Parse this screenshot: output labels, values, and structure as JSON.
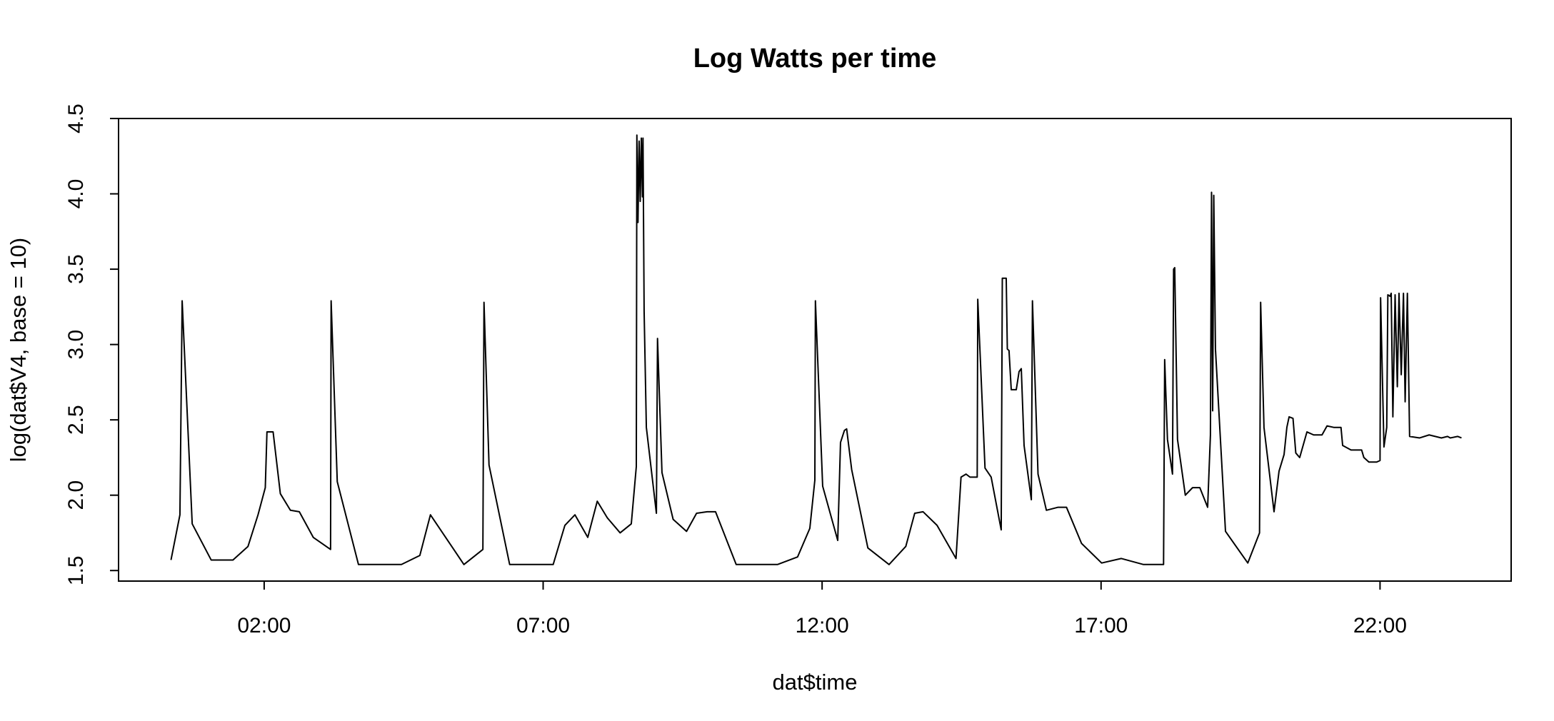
{
  "chart_data": {
    "type": "line",
    "title": "Log Watts per time",
    "x_label": "dat$time",
    "y_label": "log(dat$V4, base = 10)",
    "color": "#000000",
    "xlim": [
      -0.61,
      24.35
    ],
    "ylim": [
      1.43,
      4.5
    ],
    "xticks": [
      {
        "value": 2,
        "label": "02:00"
      },
      {
        "value": 7,
        "label": "07:00"
      },
      {
        "value": 12,
        "label": "12:00"
      },
      {
        "value": 17,
        "label": "17:00"
      },
      {
        "value": 22,
        "label": "22:00"
      }
    ],
    "yticks": [
      1.5,
      {
        "value": 2,
        "label": "2.0"
      },
      2.5,
      {
        "value": 3,
        "label": "3.0"
      },
      3.5,
      {
        "value": 4,
        "label": "4.0"
      },
      4.5
    ],
    "grid": false,
    "x": [
      0.33,
      0.49,
      0.53,
      0.71,
      1.05,
      1.44,
      1.71,
      1.89,
      2.02,
      2.05,
      2.16,
      2.29,
      2.47,
      2.63,
      2.88,
      3.19,
      3.2,
      3.31,
      3.69,
      4.46,
      4.79,
      4.98,
      5.58,
      5.92,
      5.94,
      6.03,
      6.4,
      7.18,
      7.39,
      7.57,
      7.8,
      7.97,
      8.15,
      8.38,
      8.58,
      8.67,
      8.68,
      8.7,
      8.72,
      8.74,
      8.76,
      8.78,
      8.79,
      8.81,
      8.85,
      9.03,
      9.05,
      9.13,
      9.33,
      9.57,
      9.75,
      9.94,
      10.09,
      10.46,
      11.2,
      11.56,
      11.78,
      11.87,
      11.88,
      12.01,
      12.28,
      12.33,
      12.4,
      12.44,
      12.53,
      12.82,
      13.2,
      13.5,
      13.66,
      13.81,
      14.06,
      14.4,
      14.49,
      14.58,
      14.65,
      14.78,
      14.79,
      14.92,
      15.03,
      15.21,
      15.23,
      15.3,
      15.32,
      15.35,
      15.39,
      15.48,
      15.53,
      15.57,
      15.62,
      15.75,
      15.77,
      15.87,
      16.02,
      16.23,
      16.38,
      16.65,
      17.01,
      17.36,
      17.76,
      18.12,
      18.14,
      18.19,
      18.28,
      18.3,
      18.32,
      18.37,
      18.51,
      18.64,
      18.77,
      18.91,
      18.96,
      18.98,
      19.0,
      19.02,
      19.05,
      19.23,
      19.63,
      19.84,
      19.86,
      19.92,
      20.1,
      20.19,
      20.28,
      20.33,
      20.37,
      20.44,
      20.49,
      20.56,
      20.69,
      20.81,
      20.96,
      21.05,
      21.17,
      21.3,
      21.33,
      21.48,
      21.67,
      21.71,
      21.8,
      21.94,
      22.0,
      22.01,
      22.07,
      22.12,
      22.14,
      22.18,
      22.2,
      22.23,
      22.27,
      22.31,
      22.34,
      22.38,
      22.42,
      22.45,
      22.49,
      22.53,
      22.71,
      22.88,
      23.1,
      23.21,
      23.26,
      23.39,
      23.46
    ],
    "values": [
      1.57,
      1.87,
      3.29,
      1.81,
      1.57,
      1.57,
      1.66,
      1.87,
      2.05,
      2.42,
      2.42,
      2.01,
      1.9,
      1.89,
      1.72,
      1.64,
      3.29,
      2.09,
      1.54,
      1.54,
      1.6,
      1.87,
      1.54,
      1.64,
      3.28,
      2.2,
      1.54,
      1.54,
      1.8,
      1.87,
      1.72,
      1.96,
      1.85,
      1.75,
      1.81,
      2.19,
      4.39,
      3.81,
      4.35,
      3.95,
      4.37,
      3.98,
      4.37,
      3.22,
      2.45,
      1.88,
      3.04,
      2.15,
      1.84,
      1.76,
      1.88,
      1.89,
      1.89,
      1.54,
      1.54,
      1.59,
      1.78,
      2.1,
      3.29,
      2.06,
      1.7,
      2.35,
      2.43,
      2.44,
      2.17,
      1.65,
      1.54,
      1.66,
      1.88,
      1.89,
      1.8,
      1.58,
      2.12,
      2.14,
      2.12,
      2.12,
      3.3,
      2.18,
      2.12,
      1.77,
      3.44,
      3.44,
      2.97,
      2.96,
      2.7,
      2.7,
      2.82,
      2.84,
      2.33,
      1.97,
      3.29,
      2.14,
      1.9,
      1.92,
      1.92,
      1.68,
      1.55,
      1.58,
      1.54,
      1.54,
      2.9,
      2.37,
      2.14,
      3.5,
      3.51,
      2.37,
      2.0,
      2.05,
      2.05,
      1.92,
      2.4,
      4.01,
      2.56,
      3.99,
      2.97,
      1.76,
      1.55,
      1.75,
      3.28,
      2.45,
      1.89,
      2.16,
      2.27,
      2.45,
      2.52,
      2.51,
      2.28,
      2.25,
      2.42,
      2.4,
      2.4,
      2.46,
      2.45,
      2.45,
      2.33,
      2.3,
      2.3,
      2.25,
      2.22,
      2.22,
      2.23,
      3.31,
      2.32,
      2.45,
      3.33,
      3.32,
      3.34,
      2.52,
      3.33,
      2.72,
      3.34,
      2.8,
      3.34,
      2.62,
      3.34,
      2.39,
      2.38,
      2.4,
      2.38,
      2.39,
      2.38,
      2.39,
      2.38
    ]
  }
}
